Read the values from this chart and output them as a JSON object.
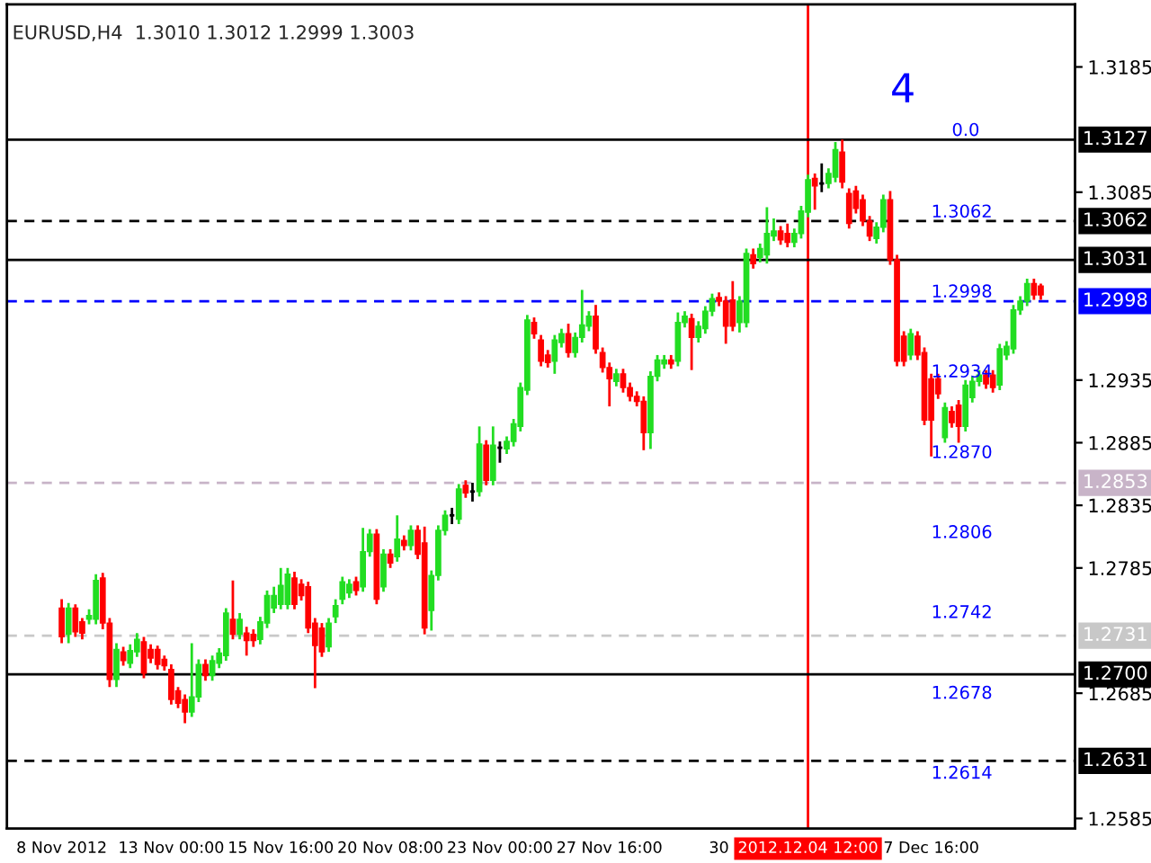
{
  "chart_data": {
    "type": "candlestick",
    "title": "EURUSD,H4  1.3010 1.3012 1.2999 1.3003",
    "categories": [
      "8 Nov 2012",
      null,
      null,
      null,
      null,
      null,
      null,
      null,
      null,
      null,
      null,
      null,
      null,
      null,
      null,
      null,
      "13 Nov 00:00",
      null,
      null,
      null,
      null,
      null,
      null,
      null,
      null,
      null,
      null,
      null,
      null,
      null,
      null,
      null,
      "15 Nov 16:00",
      null,
      null,
      null,
      null,
      null,
      null,
      null,
      null,
      null,
      null,
      null,
      null,
      null,
      null,
      null,
      "20 Nov 08:00",
      null,
      null,
      null,
      null,
      null,
      null,
      null,
      null,
      null,
      null,
      null,
      null,
      null,
      null,
      null,
      "23 Nov 00:00",
      null,
      null,
      null,
      null,
      null,
      null,
      null,
      null,
      null,
      null,
      null,
      null,
      null,
      null,
      null,
      "27 Nov 16:00",
      null,
      null,
      null,
      null,
      null,
      null,
      null,
      null,
      null,
      null,
      null,
      null,
      null,
      null,
      null,
      "30",
      null,
      null,
      null,
      null,
      null,
      null,
      null,
      null,
      null,
      null,
      null,
      null,
      "2012.12.04 12:00",
      null,
      null,
      null,
      null,
      null,
      null,
      null,
      null,
      null,
      null,
      null,
      null,
      null,
      null,
      null,
      null,
      null,
      "7 Dec 16:00",
      null,
      null,
      null,
      null,
      null,
      null,
      null,
      null,
      null,
      null,
      null,
      null,
      null,
      null,
      null,
      null
    ],
    "ohlc": [
      [
        1.2753,
        1.276,
        1.2725,
        1.273
      ],
      [
        1.2732,
        1.2757,
        1.2725,
        1.2753
      ],
      [
        1.2753,
        1.2756,
        1.273,
        1.2734
      ],
      [
        1.2742,
        1.2745,
        1.2728,
        1.2733
      ],
      [
        1.2744,
        1.2752,
        1.274,
        1.2747
      ],
      [
        1.2744,
        1.278,
        1.274,
        1.2775
      ],
      [
        1.2777,
        1.2781,
        1.2736,
        1.2741
      ],
      [
        1.2741,
        1.2745,
        1.269,
        1.2696
      ],
      [
        1.2696,
        1.2725,
        1.269,
        1.272
      ],
      [
        1.2718,
        1.2722,
        1.2707,
        1.2711
      ],
      [
        1.2709,
        1.2724,
        1.2705,
        1.2719
      ],
      [
        1.2718,
        1.2733,
        1.2714,
        1.2728
      ],
      [
        1.2726,
        1.273,
        1.2697,
        1.2701
      ],
      [
        1.272,
        1.2724,
        1.2709,
        1.2713
      ],
      [
        1.272,
        1.2723,
        1.2704,
        1.2708
      ],
      [
        1.2712,
        1.2715,
        1.2703,
        1.2707
      ],
      [
        1.2704,
        1.2708,
        1.2676,
        1.268
      ],
      [
        1.2687,
        1.269,
        1.2673,
        1.2677
      ],
      [
        1.268,
        1.2684,
        1.2661,
        1.267
      ],
      [
        1.267,
        1.2725,
        1.2666,
        1.2682
      ],
      [
        1.2682,
        1.2712,
        1.2678,
        1.2708
      ],
      [
        1.2708,
        1.2712,
        1.2695,
        1.2699
      ],
      [
        1.2699,
        1.2715,
        1.2695,
        1.2711
      ],
      [
        1.2709,
        1.2721,
        1.2705,
        1.2717
      ],
      [
        1.2715,
        1.2753,
        1.2711,
        1.2749
      ],
      [
        1.2744,
        1.2775,
        1.2728,
        1.2732
      ],
      [
        1.2732,
        1.2749,
        1.2728,
        1.2744
      ],
      [
        1.2733,
        1.2738,
        1.2715,
        1.2727
      ],
      [
        1.2732,
        1.2736,
        1.2722,
        1.2727
      ],
      [
        1.2728,
        1.2746,
        1.2724,
        1.2742
      ],
      [
        1.2741,
        1.2767,
        1.2737,
        1.2763
      ],
      [
        1.2753,
        1.277,
        1.2749,
        1.2763
      ],
      [
        1.2756,
        1.2785,
        1.2752,
        1.2771
      ],
      [
        1.2756,
        1.2785,
        1.2752,
        1.278
      ],
      [
        1.2777,
        1.2782,
        1.2752,
        1.2756
      ],
      [
        1.2772,
        1.2776,
        1.2759,
        1.2763
      ],
      [
        1.277,
        1.2774,
        1.2733,
        1.2737
      ],
      [
        1.2741,
        1.2745,
        1.2689,
        1.2723
      ],
      [
        1.2737,
        1.2741,
        1.2714,
        1.2718
      ],
      [
        1.2722,
        1.2745,
        1.2718,
        1.2741
      ],
      [
        1.2746,
        1.276,
        1.2741,
        1.2755
      ],
      [
        1.276,
        1.2778,
        1.2756,
        1.2774
      ],
      [
        1.2765,
        1.2776,
        1.2761,
        1.2772
      ],
      [
        1.2774,
        1.2778,
        1.2763,
        1.2767
      ],
      [
        1.277,
        1.2817,
        1.2766,
        1.2798
      ],
      [
        1.2798,
        1.2816,
        1.2794,
        1.2812
      ],
      [
        1.2812,
        1.2816,
        1.2756,
        1.276
      ],
      [
        1.277,
        1.28,
        1.2766,
        1.2796
      ],
      [
        1.2796,
        1.28,
        1.2785,
        1.2789
      ],
      [
        1.2794,
        1.2827,
        1.279,
        1.2808
      ],
      [
        1.2807,
        1.2811,
        1.2799,
        1.2803
      ],
      [
        1.2803,
        1.2819,
        1.2799,
        1.2815
      ],
      [
        1.2815,
        1.2819,
        1.2792,
        1.2796
      ],
      [
        1.2805,
        1.2818,
        1.2732,
        1.2737
      ],
      [
        1.2751,
        1.2783,
        1.2735,
        1.2779
      ],
      [
        1.2779,
        1.2819,
        1.2775,
        1.2815
      ],
      [
        1.2815,
        1.2831,
        1.2811,
        1.2827
      ],
      [
        1.2827,
        1.2833,
        1.282,
        1.2827
      ],
      [
        1.2824,
        1.2852,
        1.282,
        1.2848
      ],
      [
        1.2851,
        1.2855,
        1.2841,
        1.2845
      ],
      [
        1.2846,
        1.2853,
        1.2838,
        1.2846
      ],
      [
        1.2846,
        1.2898,
        1.2842,
        1.2884
      ],
      [
        1.2883,
        1.2887,
        1.2851,
        1.2855
      ],
      [
        1.2855,
        1.2898,
        1.2851,
        1.2883
      ],
      [
        1.2881,
        1.2886,
        1.2869,
        1.2881
      ],
      [
        1.288,
        1.289,
        1.2876,
        1.2886
      ],
      [
        1.2886,
        1.2904,
        1.2882,
        1.29
      ],
      [
        1.2898,
        1.2933,
        1.2894,
        1.2929
      ],
      [
        1.2927,
        1.2987,
        1.2923,
        1.2983
      ],
      [
        1.2981,
        1.2985,
        1.2968,
        1.2972
      ],
      [
        1.2967,
        1.2971,
        1.2946,
        1.295
      ],
      [
        1.2955,
        1.2959,
        1.2945,
        1.2949
      ],
      [
        1.295,
        1.2971,
        1.294,
        1.2967
      ],
      [
        1.2965,
        1.2976,
        1.2961,
        1.2972
      ],
      [
        1.2972,
        1.298,
        1.2953,
        1.2957
      ],
      [
        1.2957,
        1.2973,
        1.2953,
        1.2969
      ],
      [
        1.2969,
        1.3007,
        1.2965,
        1.2979
      ],
      [
        1.2978,
        1.299,
        1.2974,
        1.2986
      ],
      [
        1.2986,
        1.2995,
        1.2956,
        1.296
      ],
      [
        1.2957,
        1.2961,
        1.2941,
        1.2945
      ],
      [
        1.2945,
        1.2949,
        1.2914,
        1.2936
      ],
      [
        1.2934,
        1.2944,
        1.293,
        1.294
      ],
      [
        1.294,
        1.2944,
        1.2925,
        1.2929
      ],
      [
        1.2929,
        1.2933,
        1.2918,
        1.2922
      ],
      [
        1.2922,
        1.2926,
        1.2914,
        1.2918
      ],
      [
        1.2918,
        1.2922,
        1.2879,
        1.2893
      ],
      [
        1.2893,
        1.2942,
        1.288,
        1.2938
      ],
      [
        1.2938,
        1.2955,
        1.2934,
        1.2951
      ],
      [
        1.2948,
        1.2955,
        1.2944,
        1.2951
      ],
      [
        1.2951,
        1.2955,
        1.2944,
        1.2948
      ],
      [
        1.295,
        1.2989,
        1.2946,
        1.2981
      ],
      [
        1.2981,
        1.299,
        1.2977,
        1.2986
      ],
      [
        1.2984,
        1.2988,
        1.2943,
        1.2969
      ],
      [
        1.2969,
        1.2982,
        1.2965,
        1.2978
      ],
      [
        1.2976,
        1.2994,
        1.2972,
        1.299
      ],
      [
        1.299,
        1.3004,
        1.2986,
        1.3
      ],
      [
        1.3001,
        1.3005,
        1.2994,
        1.2998
      ],
      [
        1.2998,
        1.3002,
        1.2964,
        1.2978
      ],
      [
        1.2999,
        1.3014,
        1.2974,
        1.2978
      ],
      [
        1.2981,
        1.3002,
        1.2973,
        1.2998
      ],
      [
        1.2981,
        1.304,
        1.2977,
        1.3036
      ],
      [
        1.3035,
        1.304,
        1.3024,
        1.3028
      ],
      [
        1.3033,
        1.3044,
        1.3029,
        1.304
      ],
      [
        1.3035,
        1.3073,
        1.3028,
        1.3052
      ],
      [
        1.305,
        1.3064,
        1.3046,
        1.3054
      ],
      [
        1.3054,
        1.3058,
        1.3043,
        1.3047
      ],
      [
        1.3052,
        1.306,
        1.3041,
        1.3045
      ],
      [
        1.3045,
        1.3056,
        1.3041,
        1.3052
      ],
      [
        1.3052,
        1.3074,
        1.3048,
        1.307
      ],
      [
        1.3069,
        1.3099,
        1.3065,
        1.3095
      ],
      [
        1.3096,
        1.31,
        1.3071,
        1.309
      ],
      [
        1.3092,
        1.3108,
        1.3085,
        1.3092
      ],
      [
        1.3092,
        1.3104,
        1.3088,
        1.31
      ],
      [
        1.3097,
        1.3125,
        1.3093,
        1.3119
      ],
      [
        1.3117,
        1.3127,
        1.3088,
        1.3093
      ],
      [
        1.3084,
        1.3088,
        1.3056,
        1.306
      ],
      [
        1.3086,
        1.309,
        1.3068,
        1.3072
      ],
      [
        1.3079,
        1.3083,
        1.3058,
        1.3062
      ],
      [
        1.3062,
        1.3066,
        1.3046,
        1.305
      ],
      [
        1.3048,
        1.3061,
        1.3044,
        1.3057
      ],
      [
        1.3057,
        1.3083,
        1.3053,
        1.3079
      ],
      [
        1.3079,
        1.3086,
        1.3027,
        1.3031
      ],
      [
        1.3031,
        1.3035,
        1.2946,
        1.295
      ],
      [
        1.297,
        1.2974,
        1.2946,
        1.295
      ],
      [
        1.2955,
        1.2976,
        1.2951,
        1.2972
      ],
      [
        1.297,
        1.2974,
        1.2951,
        1.2955
      ],
      [
        1.2957,
        1.2961,
        1.2899,
        1.2903
      ],
      [
        1.2936,
        1.294,
        1.2874,
        1.2903
      ],
      [
        1.2936,
        1.294,
        1.292,
        1.2924
      ],
      [
        1.2889,
        1.2917,
        1.2885,
        1.2913
      ],
      [
        1.291,
        1.2914,
        1.2897,
        1.2901
      ],
      [
        1.2915,
        1.2919,
        1.2885,
        1.2898
      ],
      [
        1.2898,
        1.2935,
        1.2894,
        1.2931
      ],
      [
        1.2921,
        1.2938,
        1.2917,
        1.2934
      ],
      [
        1.2934,
        1.2943,
        1.293,
        1.2939
      ],
      [
        1.2939,
        1.2943,
        1.2928,
        1.2932
      ],
      [
        1.2939,
        1.2943,
        1.2925,
        1.2929
      ],
      [
        1.2931,
        1.2964,
        1.2927,
        1.296
      ],
      [
        1.2955,
        1.2966,
        1.2951,
        1.2962
      ],
      [
        1.296,
        1.2995,
        1.2956,
        1.2991
      ],
      [
        1.2991,
        1.3002,
        1.2987,
        1.2998
      ],
      [
        1.2998,
        1.3016,
        1.2994,
        1.3012
      ],
      [
        1.3012,
        1.3016,
        1.2999,
        1.3003
      ],
      [
        1.301,
        1.3012,
        1.2999,
        1.3003
      ]
    ],
    "colors": [
      "#ff0000",
      "#22dd22",
      "#ff0000",
      "#ff0000",
      "#22dd22",
      "#22dd22",
      "#ff0000",
      "#ff0000",
      "#22dd22",
      "#ff0000",
      "#22dd22",
      "#22dd22",
      "#ff0000",
      "#ff0000",
      "#ff0000",
      "#ff0000",
      "#ff0000",
      "#ff0000",
      "#ff0000",
      "#22dd22",
      "#22dd22",
      "#ff0000",
      "#22dd22",
      "#22dd22",
      "#22dd22",
      "#ff0000",
      "#22dd22",
      "#ff0000",
      "#ff0000",
      "#22dd22",
      "#22dd22",
      "#22dd22",
      "#22dd22",
      "#22dd22",
      "#ff0000",
      "#ff0000",
      "#ff0000",
      "#ff0000",
      "#ff0000",
      "#22dd22",
      "#22dd22",
      "#22dd22",
      "#22dd22",
      "#ff0000",
      "#22dd22",
      "#22dd22",
      "#ff0000",
      "#22dd22",
      "#ff0000",
      "#22dd22",
      "#ff0000",
      "#22dd22",
      "#ff0000",
      "#ff0000",
      "#22dd22",
      "#22dd22",
      "#22dd22",
      "#000000",
      "#22dd22",
      "#ff0000",
      "#000000",
      "#22dd22",
      "#ff0000",
      "#22dd22",
      "#000000",
      "#22dd22",
      "#22dd22",
      "#22dd22",
      "#22dd22",
      "#ff0000",
      "#ff0000",
      "#ff0000",
      "#22dd22",
      "#22dd22",
      "#ff0000",
      "#22dd22",
      "#22dd22",
      "#22dd22",
      "#ff0000",
      "#ff0000",
      "#ff0000",
      "#22dd22",
      "#ff0000",
      "#ff0000",
      "#ff0000",
      "#ff0000",
      "#22dd22",
      "#22dd22",
      "#22dd22",
      "#ff0000",
      "#22dd22",
      "#22dd22",
      "#ff0000",
      "#22dd22",
      "#22dd22",
      "#22dd22",
      "#ff0000",
      "#ff0000",
      "#ff0000",
      "#22dd22",
      "#22dd22",
      "#ff0000",
      "#22dd22",
      "#22dd22",
      "#22dd22",
      "#ff0000",
      "#ff0000",
      "#22dd22",
      "#22dd22",
      "#22dd22",
      "#ff0000",
      "#000000",
      "#22dd22",
      "#22dd22",
      "#ff0000",
      "#ff0000",
      "#ff0000",
      "#ff0000",
      "#ff0000",
      "#22dd22",
      "#22dd22",
      "#ff0000",
      "#ff0000",
      "#ff0000",
      "#22dd22",
      "#ff0000",
      "#ff0000",
      "#ff0000",
      "#ff0000",
      "#22dd22",
      "#ff0000",
      "#ff0000",
      "#22dd22",
      "#22dd22",
      "#22dd22",
      "#ff0000",
      "#ff0000",
      "#22dd22",
      "#22dd22",
      "#22dd22",
      "#22dd22",
      "#22dd22",
      "#ff0000",
      "#ff0000"
    ],
    "ylim": [
      1.2577,
      1.3235
    ],
    "yticks": [
      1.2585,
      1.2685,
      1.2785,
      1.2835,
      1.2885,
      1.2935,
      1.3085,
      1.3185
    ],
    "ref_lines": [
      {
        "axis": "y",
        "value": 1.3127,
        "label": "1.3127",
        "color": "#000000",
        "line_style": "solid"
      },
      {
        "axis": "y",
        "value": 1.3062,
        "label": "1.3062",
        "color": "#000000",
        "line_style": "dashed"
      },
      {
        "axis": "y",
        "value": 1.3031,
        "label": "1.3031",
        "color": "#000000",
        "line_style": "solid"
      },
      {
        "axis": "y",
        "value": 1.2998,
        "label": "1.2998",
        "color": "#0000ff",
        "line_style": "dashed"
      },
      {
        "axis": "y",
        "value": 1.2853,
        "label": "1.2853",
        "color": "#c8b4c8",
        "line_style": "dashed"
      },
      {
        "axis": "y",
        "value": 1.2731,
        "label": "1.2731",
        "color": "#c8c8c8",
        "line_style": "dashed"
      },
      {
        "axis": "y",
        "value": 1.27,
        "label": "1.2700",
        "color": "#000000",
        "line_style": "solid"
      },
      {
        "axis": "y",
        "value": 1.2631,
        "label": "1.2631",
        "color": "#000000",
        "line_style": "dashed"
      },
      {
        "axis": "x",
        "value": "2012.12.04 12:00",
        "color": "#ff0000",
        "line_style": "solid"
      }
    ],
    "annotations": [
      "4",
      "0.0",
      "1.3062",
      "1.2998",
      "1.2934",
      "1.2870",
      "1.2806",
      "1.2742",
      "1.2678",
      "1.2614"
    ],
    "grid": false,
    "legend": false
  }
}
